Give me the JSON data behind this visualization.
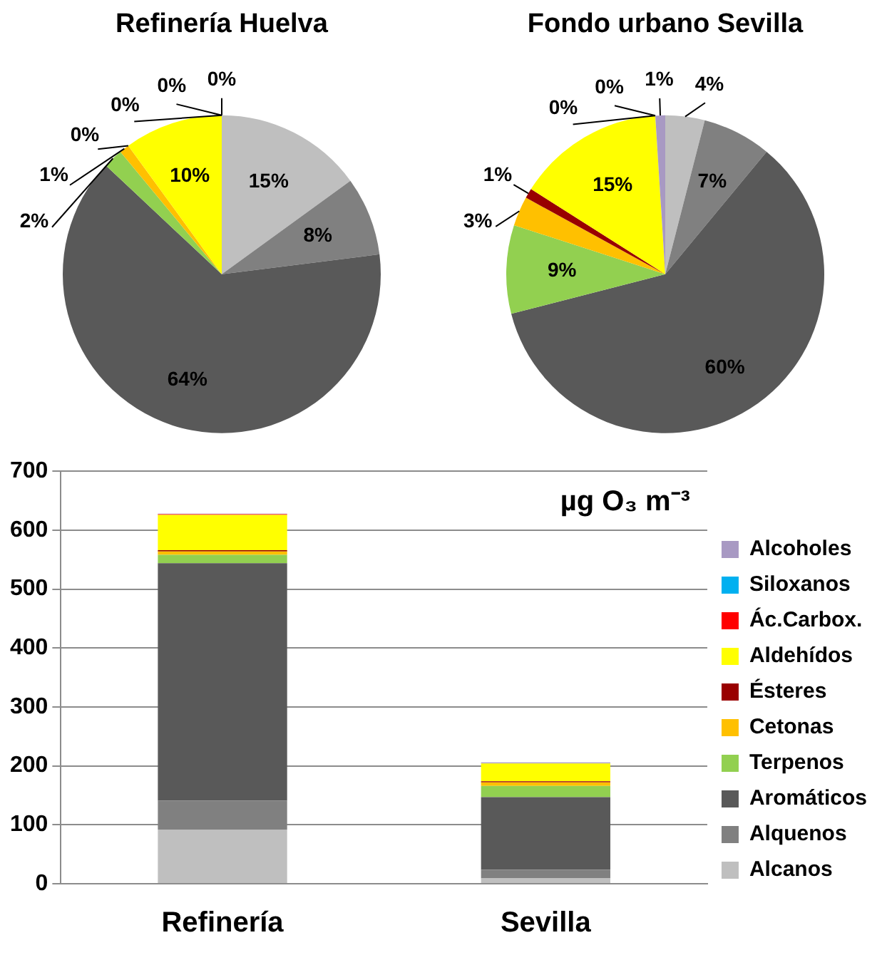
{
  "chart_data": [
    {
      "type": "pie",
      "title": "Refinería Huelva",
      "categories": [
        null,
        null,
        null,
        null,
        null,
        null,
        null,
        null,
        null,
        null
      ],
      "values": [
        15,
        8,
        64,
        2,
        1,
        0,
        10,
        0,
        0,
        0
      ],
      "value_labels": [
        "15%",
        "8%",
        "64%",
        "2%",
        "1%",
        "0%",
        "10%",
        "0%",
        "0%",
        "0%"
      ],
      "colors": [
        "#bfbfbf",
        "#808080",
        "#595959",
        "#92d050",
        "#ffc000",
        "#990000",
        "#ffff00",
        "#ff0000",
        "#00b0f0",
        "#a899c3"
      ]
    },
    {
      "type": "pie",
      "title": "Fondo urbano Sevilla",
      "categories": [
        null,
        null,
        null,
        null,
        null,
        null,
        null,
        null,
        null,
        null
      ],
      "values": [
        4,
        7,
        60,
        9,
        3,
        1,
        15,
        0,
        0,
        1
      ],
      "value_labels": [
        "4%",
        "7%",
        "60%",
        "9%",
        "3%",
        "1%",
        "15%",
        "0%",
        "0%",
        "1%"
      ],
      "colors": [
        "#bfbfbf",
        "#808080",
        "#595959",
        "#92d050",
        "#ffc000",
        "#990000",
        "#ffff00",
        "#ff0000",
        "#00b0f0",
        "#a899c3"
      ]
    },
    {
      "type": "bar",
      "categories": [
        "Refinería",
        "Sevilla"
      ],
      "stacked": true,
      "ylim": [
        0,
        700
      ],
      "yticks": [
        0,
        100,
        200,
        300,
        400,
        500,
        600,
        700
      ],
      "grid": "y",
      "legend": "right",
      "annotations": [
        "µg O₃ m⁻³"
      ],
      "series": [
        {
          "name": "Alcanos",
          "color": "#bfbfbf",
          "values": [
            92,
            9
          ]
        },
        {
          "name": "Alquenos",
          "color": "#808080",
          "values": [
            49,
            15
          ]
        },
        {
          "name": "Aromáticos",
          "color": "#595959",
          "values": [
            403,
            123
          ]
        },
        {
          "name": "Terpenos",
          "color": "#92d050",
          "values": [
            14,
            19
          ]
        },
        {
          "name": "Cetonas",
          "color": "#ffc000",
          "values": [
            6,
            6
          ]
        },
        {
          "name": "Ésteres",
          "color": "#990000",
          "values": [
            2,
            2
          ]
        },
        {
          "name": "Aldehídos",
          "color": "#ffff00",
          "values": [
            60,
            30
          ]
        },
        {
          "name": "Ác.Carbox.",
          "color": "#ff0000",
          "values": [
            1,
            0
          ]
        },
        {
          "name": "Siloxanos",
          "color": "#00b0f0",
          "values": [
            0,
            0
          ]
        },
        {
          "name": "Alcoholes",
          "color": "#a899c3",
          "values": [
            1,
            2
          ]
        }
      ]
    }
  ]
}
